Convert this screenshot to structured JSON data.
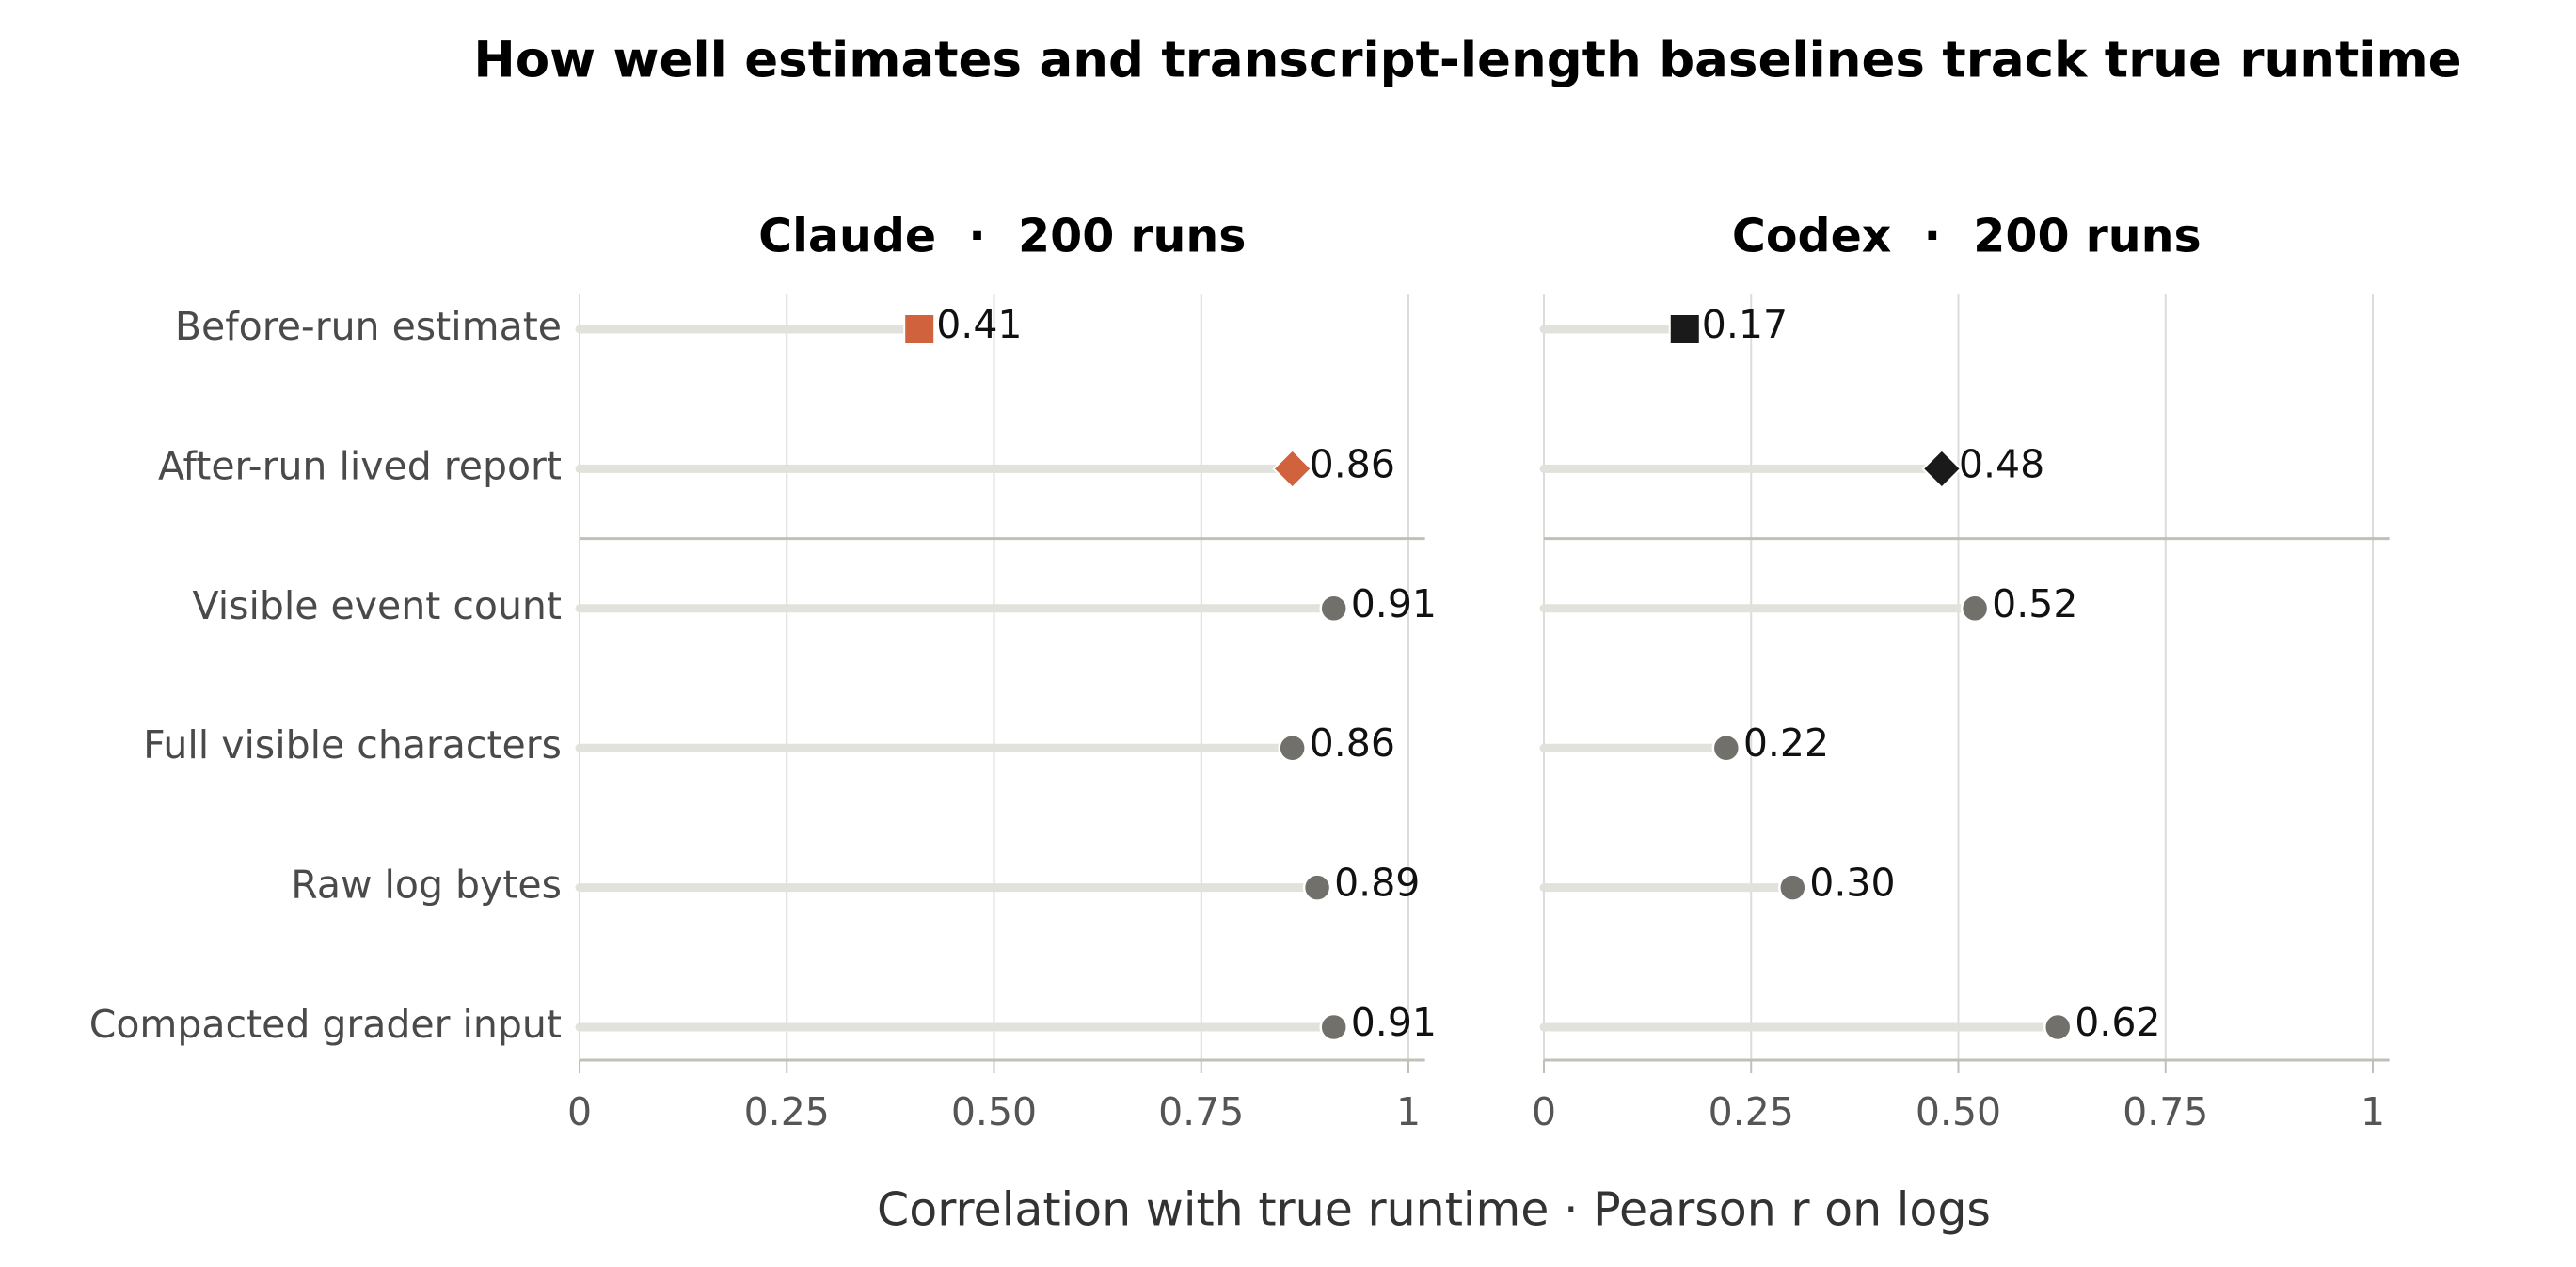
{
  "title": "How well estimates and transcript-length baselines track true runtime",
  "xlabel": "Correlation with true runtime · Pearson r on logs",
  "chart_data": [
    {
      "type": "lollipop",
      "title": "Claude  ·  200 runs",
      "categories": [
        "Before-run estimate",
        "After-run lived report",
        "Visible event count",
        "Full visible characters",
        "Raw log bytes",
        "Compacted grader input"
      ],
      "values": [
        0.41,
        0.86,
        0.91,
        0.86,
        0.89,
        0.91
      ],
      "markers": [
        "square",
        "diamond",
        "circle",
        "circle",
        "circle",
        "circle"
      ],
      "colors": [
        "#d0623e",
        "#d0623e",
        "#72706a",
        "#72706a",
        "#72706a",
        "#72706a"
      ],
      "xlim": [
        0,
        1.02
      ],
      "xticks": [
        0,
        0.25,
        {
          "value": 0.5,
          "label": "0.50"
        },
        0.75,
        1
      ],
      "grid": true
    },
    {
      "type": "lollipop",
      "title": "Codex  ·  200 runs",
      "values": [
        0.17,
        0.48,
        0.52,
        0.22,
        0.3,
        0.62
      ],
      "value_labels": [
        "0.17",
        "0.48",
        "0.52",
        "0.22",
        "0.30",
        "0.62"
      ],
      "markers": [
        "square",
        "diamond",
        "circle",
        "circle",
        "circle",
        "circle"
      ],
      "colors": [
        "#1a1a1a",
        "#1a1a1a",
        "#72706a",
        "#72706a",
        "#72706a",
        "#72706a"
      ],
      "xlim": [
        0,
        1.02
      ],
      "xticks": [
        0,
        0.25,
        {
          "value": 0.5,
          "label": "0.50"
        },
        0.75,
        1
      ],
      "grid": true
    }
  ]
}
